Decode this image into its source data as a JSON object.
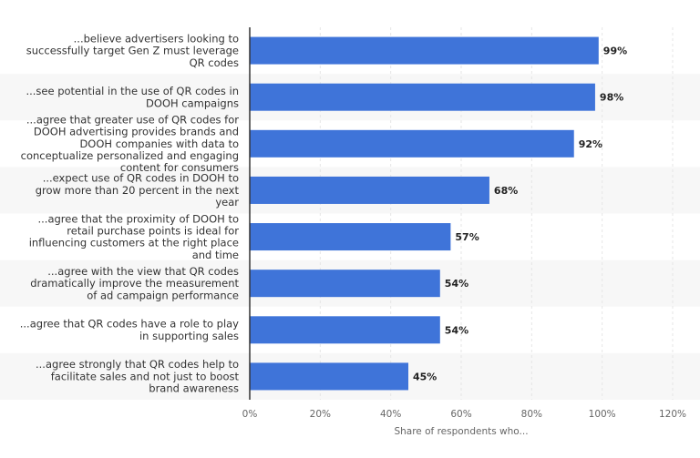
{
  "chart_data": {
    "type": "bar",
    "orientation": "horizontal",
    "categories": [
      "...believe advertisers looking to successfully target Gen Z must leverage QR codes",
      "...see potential in the use of QR codes in DOOH campaigns",
      "...agree that greater use of QR codes for DOOH advertising provides brands and DOOH companies with data to conceptualize personalized and engaging content for consumers",
      "...expect use of QR codes in DOOH to grow more than 20 percent in the next year",
      "...agree that the proximity of DOOH to retail purchase points is ideal for influencing customers at the right place and time",
      "...agree with the view that QR codes dramatically improve the measurement of ad campaign performance",
      "...agree that QR codes have a role to play in supporting sales",
      "...agree strongly that QR codes help to facilitate sales and not just to boost brand awareness"
    ],
    "category_lines": [
      [
        "...believe advertisers looking to",
        "successfully target Gen Z must leverage",
        "QR codes"
      ],
      [
        "...see potential in the use of QR codes in",
        "DOOH campaigns"
      ],
      [
        "...agree that greater use of QR codes for",
        "DOOH advertising provides brands and",
        "DOOH companies with data to",
        "conceptualize personalized and engaging",
        "content for consumers"
      ],
      [
        "...expect use of QR codes in DOOH to",
        "grow more than 20 percent in the next",
        "year"
      ],
      [
        "...agree that the proximity of DOOH to",
        "retail purchase points is ideal for",
        "influencing customers at the right place",
        "and time"
      ],
      [
        "...agree with the view that QR codes",
        "dramatically improve the measurement",
        "of ad campaign performance"
      ],
      [
        "...agree that QR codes have a role to play",
        "in supporting sales"
      ],
      [
        "...agree strongly that QR codes help to",
        "facilitate sales and not just to boost",
        "brand awareness"
      ]
    ],
    "values": [
      99,
      98,
      92,
      68,
      57,
      54,
      54,
      45
    ],
    "value_labels": [
      "99%",
      "98%",
      "92%",
      "68%",
      "57%",
      "54%",
      "54%",
      "45%"
    ],
    "x_ticks": [
      0,
      20,
      40,
      60,
      80,
      100,
      120
    ],
    "x_tick_labels": [
      "0%",
      "20%",
      "40%",
      "60%",
      "80%",
      "100%",
      "120%"
    ],
    "xlim": [
      0,
      120
    ],
    "xlabel": "Share of respondents who...",
    "ylabel": "",
    "title": "",
    "grid": true,
    "bar_color": "#3f74d9",
    "band_color": "#f7f7f7",
    "grid_color": "#e6e6e6",
    "axis_color": "#333333"
  }
}
